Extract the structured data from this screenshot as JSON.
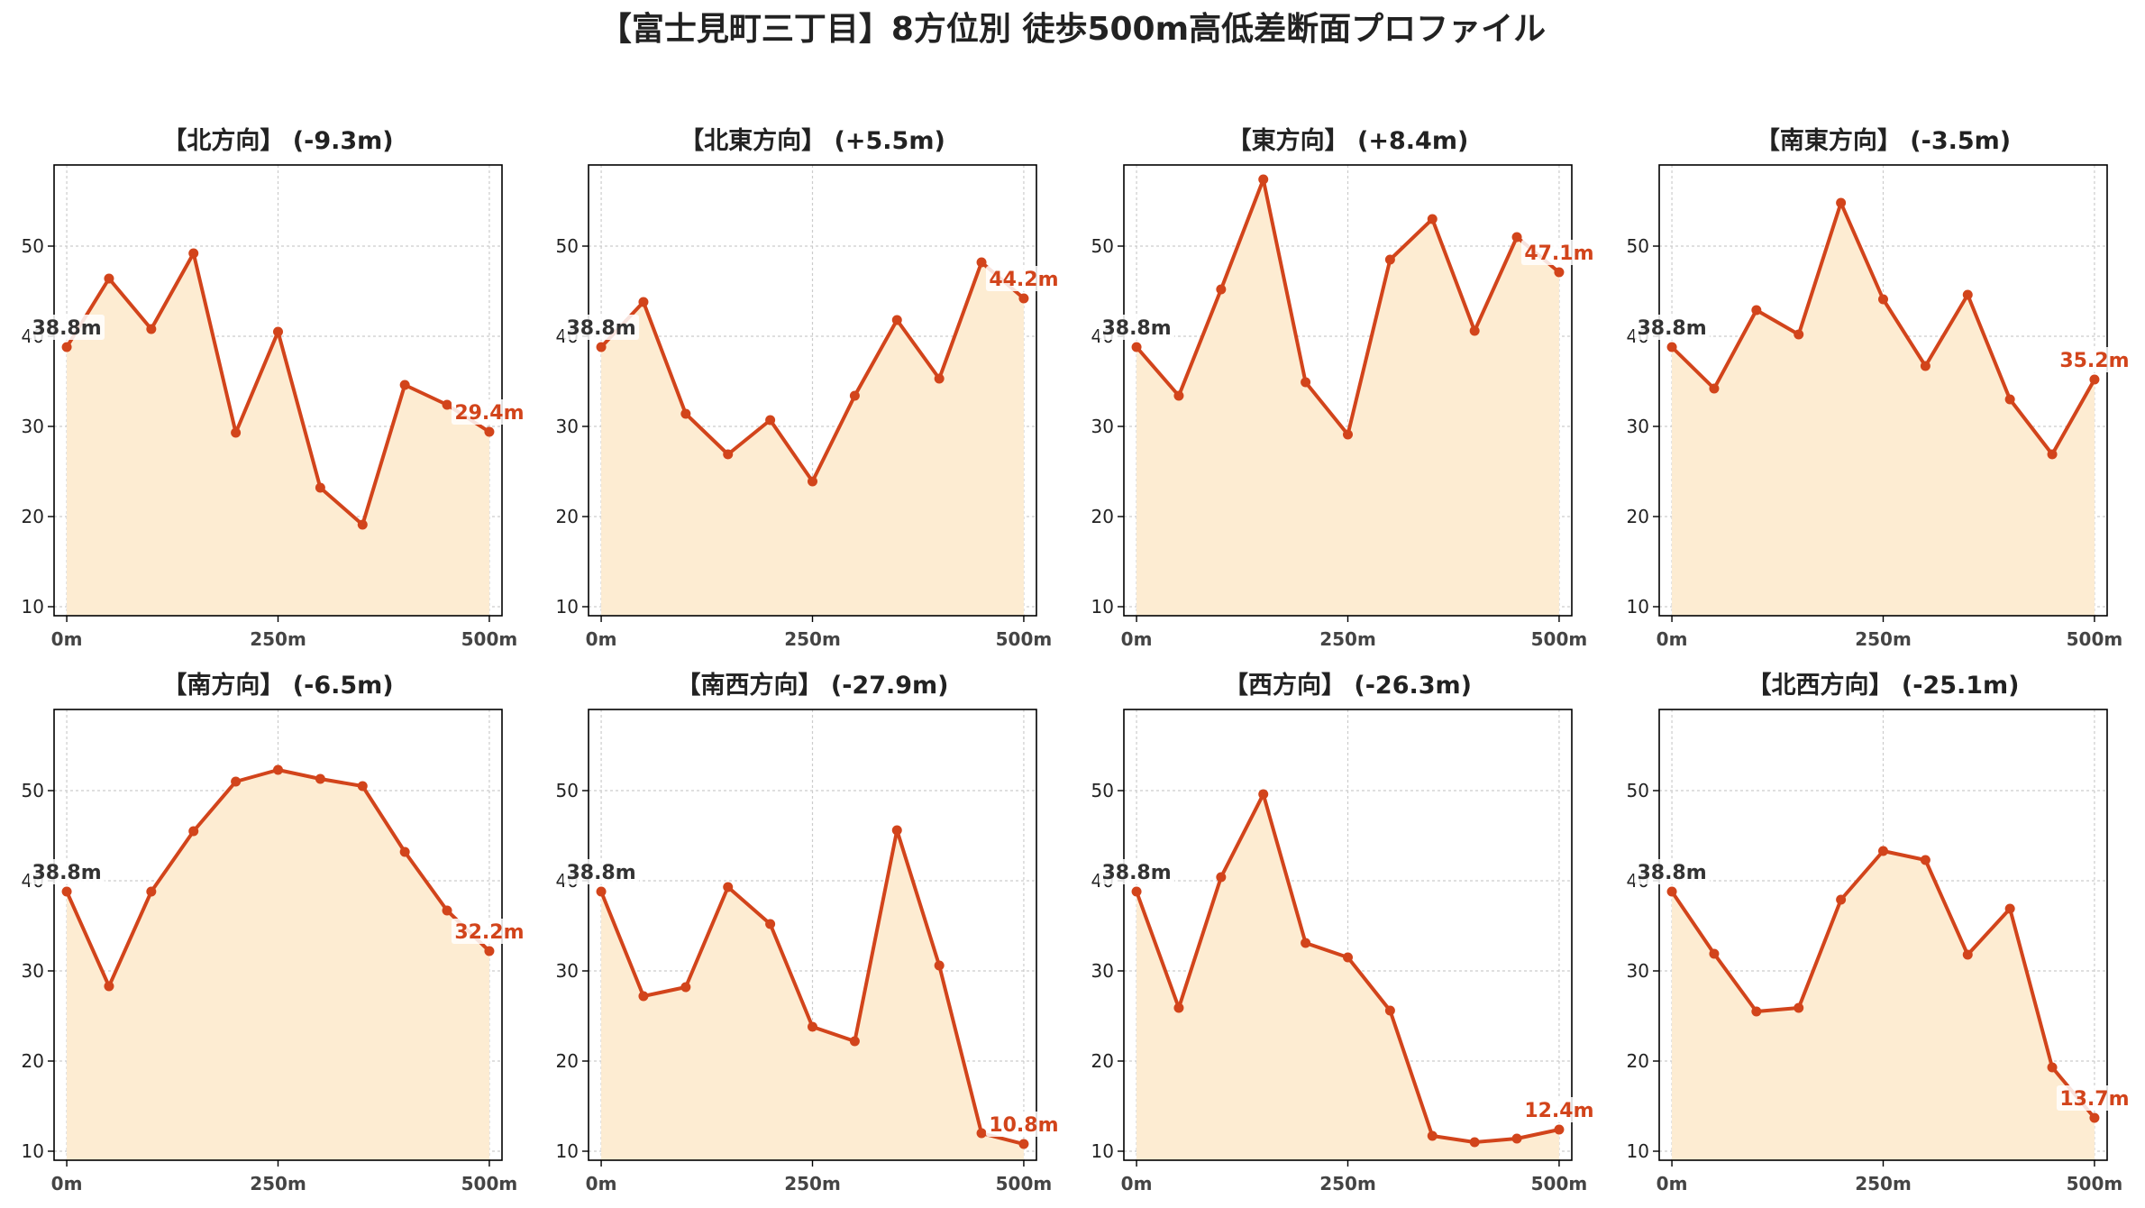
{
  "page": {
    "title": "【富士見町三丁目】8方位別 徒歩500m高低差断面プロファイル"
  },
  "colors": {
    "line": "#d2441b",
    "fill": "#fdecd2",
    "start_label": "#333333",
    "end_label": "#d2441b",
    "grid": "#cccccc"
  },
  "chart_data": [
    {
      "type": "area",
      "title": "【北方向】 (-9.3m)",
      "x": [
        0,
        50,
        100,
        150,
        200,
        250,
        300,
        350,
        400,
        450,
        500
      ],
      "y": [
        38.8,
        46.4,
        40.8,
        49.2,
        29.3,
        40.5,
        23.2,
        19.1,
        34.6,
        32.4,
        29.4
      ],
      "start_label": "38.8m",
      "end_label": "29.4m",
      "xticks": [
        0,
        250,
        500
      ],
      "xtick_labels": [
        "0m",
        "250m",
        "500m"
      ],
      "yticks": [
        10,
        20,
        30,
        40,
        50
      ],
      "ytick_labels": [
        "10",
        "20",
        "30",
        "40",
        "50"
      ],
      "xlim": [
        -15,
        515
      ],
      "ylim": [
        9,
        59
      ],
      "grid": true
    },
    {
      "type": "area",
      "title": "【北東方向】 (+5.5m)",
      "x": [
        0,
        50,
        100,
        150,
        200,
        250,
        300,
        350,
        400,
        450,
        500
      ],
      "y": [
        38.8,
        43.8,
        31.4,
        26.9,
        30.7,
        23.9,
        33.4,
        41.8,
        35.3,
        48.2,
        44.2
      ],
      "start_label": "38.8m",
      "end_label": "44.2m",
      "xticks": [
        0,
        250,
        500
      ],
      "xtick_labels": [
        "0m",
        "250m",
        "500m"
      ],
      "yticks": [
        10,
        20,
        30,
        40,
        50
      ],
      "ytick_labels": [
        "10",
        "20",
        "30",
        "40",
        "50"
      ],
      "xlim": [
        -15,
        515
      ],
      "ylim": [
        9,
        59
      ],
      "grid": true
    },
    {
      "type": "area",
      "title": "【東方向】 (+8.4m)",
      "x": [
        0,
        50,
        100,
        150,
        200,
        250,
        300,
        350,
        400,
        450,
        500
      ],
      "y": [
        38.8,
        33.4,
        45.2,
        57.4,
        34.9,
        29.1,
        48.5,
        53.0,
        40.6,
        51.0,
        47.1
      ],
      "start_label": "38.8m",
      "end_label": "47.1m",
      "xticks": [
        0,
        250,
        500
      ],
      "xtick_labels": [
        "0m",
        "250m",
        "500m"
      ],
      "yticks": [
        10,
        20,
        30,
        40,
        50
      ],
      "ytick_labels": [
        "10",
        "20",
        "30",
        "40",
        "50"
      ],
      "xlim": [
        -15,
        515
      ],
      "ylim": [
        9,
        59
      ],
      "grid": true
    },
    {
      "type": "area",
      "title": "【南東方向】 (-3.5m)",
      "x": [
        0,
        50,
        100,
        150,
        200,
        250,
        300,
        350,
        400,
        450,
        500
      ],
      "y": [
        38.8,
        34.2,
        42.9,
        40.2,
        54.8,
        44.1,
        36.7,
        44.6,
        33.0,
        26.9,
        35.2
      ],
      "start_label": "38.8m",
      "end_label": "35.2m",
      "xticks": [
        0,
        250,
        500
      ],
      "xtick_labels": [
        "0m",
        "250m",
        "500m"
      ],
      "yticks": [
        10,
        20,
        30,
        40,
        50
      ],
      "ytick_labels": [
        "10",
        "20",
        "30",
        "40",
        "50"
      ],
      "xlim": [
        -15,
        515
      ],
      "ylim": [
        9,
        59
      ],
      "grid": true
    },
    {
      "type": "area",
      "title": "【南方向】 (-6.5m)",
      "x": [
        0,
        50,
        100,
        150,
        200,
        250,
        300,
        350,
        400,
        450,
        500
      ],
      "y": [
        38.8,
        28.3,
        38.8,
        45.5,
        51.0,
        52.3,
        51.3,
        50.5,
        43.2,
        36.7,
        32.2
      ],
      "start_label": "38.8m",
      "end_label": "32.2m",
      "xticks": [
        0,
        250,
        500
      ],
      "xtick_labels": [
        "0m",
        "250m",
        "500m"
      ],
      "yticks": [
        10,
        20,
        30,
        40,
        50
      ],
      "ytick_labels": [
        "10",
        "20",
        "30",
        "40",
        "50"
      ],
      "xlim": [
        -15,
        515
      ],
      "ylim": [
        9,
        59
      ],
      "grid": true
    },
    {
      "type": "area",
      "title": "【南西方向】 (-27.9m)",
      "x": [
        0,
        50,
        100,
        150,
        200,
        250,
        300,
        350,
        400,
        450,
        500
      ],
      "y": [
        38.8,
        27.2,
        28.2,
        39.3,
        35.2,
        23.8,
        22.2,
        45.6,
        30.6,
        12.0,
        10.8
      ],
      "start_label": "38.8m",
      "end_label": "10.8m",
      "xticks": [
        0,
        250,
        500
      ],
      "xtick_labels": [
        "0m",
        "250m",
        "500m"
      ],
      "yticks": [
        10,
        20,
        30,
        40,
        50
      ],
      "ytick_labels": [
        "10",
        "20",
        "30",
        "40",
        "50"
      ],
      "xlim": [
        -15,
        515
      ],
      "ylim": [
        9,
        59
      ],
      "grid": true
    },
    {
      "type": "area",
      "title": "【西方向】 (-26.3m)",
      "x": [
        0,
        50,
        100,
        150,
        200,
        250,
        300,
        350,
        400,
        450,
        500
      ],
      "y": [
        38.8,
        25.9,
        40.4,
        49.6,
        33.1,
        31.5,
        25.6,
        11.7,
        11.0,
        11.4,
        12.4
      ],
      "start_label": "38.8m",
      "end_label": "12.4m",
      "xticks": [
        0,
        250,
        500
      ],
      "xtick_labels": [
        "0m",
        "250m",
        "500m"
      ],
      "yticks": [
        10,
        20,
        30,
        40,
        50
      ],
      "ytick_labels": [
        "10",
        "20",
        "30",
        "40",
        "50"
      ],
      "xlim": [
        -15,
        515
      ],
      "ylim": [
        9,
        59
      ],
      "grid": true
    },
    {
      "type": "area",
      "title": "【北西方向】 (-25.1m)",
      "x": [
        0,
        50,
        100,
        150,
        200,
        250,
        300,
        350,
        400,
        450,
        500
      ],
      "y": [
        38.8,
        31.9,
        25.5,
        25.9,
        37.9,
        43.3,
        42.3,
        31.8,
        36.9,
        19.3,
        13.7
      ],
      "start_label": "38.8m",
      "end_label": "13.7m",
      "xticks": [
        0,
        250,
        500
      ],
      "xtick_labels": [
        "0m",
        "250m",
        "500m"
      ],
      "yticks": [
        10,
        20,
        30,
        40,
        50
      ],
      "ytick_labels": [
        "10",
        "20",
        "30",
        "40",
        "50"
      ],
      "xlim": [
        -15,
        515
      ],
      "ylim": [
        9,
        59
      ],
      "grid": true
    }
  ]
}
